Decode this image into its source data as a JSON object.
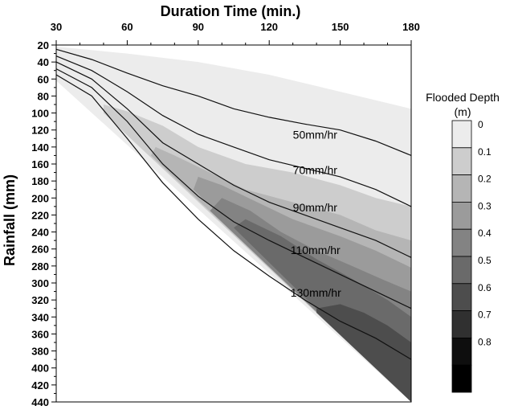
{
  "chart_data": {
    "type": "contour",
    "xlabel": "Duration Time (min.)",
    "ylabel": "Rainfall (mm)",
    "x_ticks": [
      30,
      60,
      90,
      120,
      150,
      180
    ],
    "y_ticks": [
      20,
      40,
      60,
      80,
      100,
      120,
      140,
      160,
      180,
      200,
      220,
      240,
      260,
      280,
      300,
      320,
      340,
      360,
      380,
      400,
      420,
      440
    ],
    "xlim": [
      30,
      180
    ],
    "ylim": [
      440,
      20
    ],
    "x_axis_position": "top",
    "y_axis_inverted": true,
    "legend": {
      "title_line1": "Flooded Depth",
      "title_line2": "(m)",
      "levels": [
        "0",
        "0.1",
        "0.2",
        "0.3",
        "0.4",
        "0.5",
        "0.6",
        "0.7",
        "0.8"
      ],
      "colors": [
        "#ececec",
        "#cdcdcd",
        "#b5b5b5",
        "#9b9b9b",
        "#838383",
        "#6a6a6a",
        "#4d4d4d",
        "#303030",
        "#0e0e0e",
        "#000000"
      ]
    },
    "intensity_lines": [
      {
        "label": "50mm/hr",
        "label_at": [
          130,
          130
        ],
        "points": [
          [
            30,
            25
          ],
          [
            45,
            37
          ],
          [
            60,
            53
          ],
          [
            75,
            68
          ],
          [
            90,
            80
          ],
          [
            105,
            95
          ],
          [
            120,
            105
          ],
          [
            135,
            113
          ],
          [
            150,
            120
          ],
          [
            165,
            133
          ],
          [
            180,
            150
          ]
        ]
      },
      {
        "label": "70mm/hr",
        "label_at": [
          130,
          172
        ],
        "points": [
          [
            30,
            33
          ],
          [
            45,
            50
          ],
          [
            60,
            75
          ],
          [
            75,
            103
          ],
          [
            90,
            125
          ],
          [
            105,
            140
          ],
          [
            120,
            155
          ],
          [
            135,
            165
          ],
          [
            150,
            175
          ],
          [
            165,
            190
          ],
          [
            180,
            210
          ]
        ]
      },
      {
        "label": "90mm/hr",
        "label_at": [
          130,
          216
        ],
        "points": [
          [
            30,
            40
          ],
          [
            45,
            60
          ],
          [
            60,
            95
          ],
          [
            75,
            135
          ],
          [
            90,
            160
          ],
          [
            105,
            185
          ],
          [
            120,
            205
          ],
          [
            135,
            220
          ],
          [
            150,
            235
          ],
          [
            165,
            250
          ],
          [
            180,
            270
          ]
        ]
      },
      {
        "label": "110mm/hr",
        "label_at": [
          129,
          266
        ],
        "points": [
          [
            30,
            48
          ],
          [
            45,
            70
          ],
          [
            60,
            110
          ],
          [
            75,
            160
          ],
          [
            90,
            198
          ],
          [
            105,
            228
          ],
          [
            120,
            250
          ],
          [
            135,
            270
          ],
          [
            150,
            290
          ],
          [
            165,
            310
          ],
          [
            180,
            330
          ]
        ]
      },
      {
        "label": "130mm/hr",
        "label_at": [
          129,
          316
        ],
        "points": [
          [
            30,
            55
          ],
          [
            45,
            80
          ],
          [
            60,
            130
          ],
          [
            75,
            182
          ],
          [
            90,
            225
          ],
          [
            105,
            262
          ],
          [
            120,
            292
          ],
          [
            135,
            320
          ],
          [
            150,
            345
          ],
          [
            165,
            365
          ],
          [
            180,
            390
          ]
        ]
      }
    ],
    "depth_regions": [
      {
        "value": 0.05,
        "polygon": [
          [
            30,
            22
          ],
          [
            60,
            30
          ],
          [
            90,
            40
          ],
          [
            120,
            55
          ],
          [
            150,
            75
          ],
          [
            180,
            95
          ],
          [
            180,
            440
          ],
          [
            30,
            62
          ]
        ]
      },
      {
        "value": 0.15,
        "polygon": [
          [
            50,
            90
          ],
          [
            60,
            98
          ],
          [
            75,
            115
          ],
          [
            90,
            140
          ],
          [
            110,
            160
          ],
          [
            130,
            170
          ],
          [
            150,
            185
          ],
          [
            165,
            200
          ],
          [
            180,
            210
          ],
          [
            180,
            440
          ],
          [
            50,
            100
          ]
        ]
      },
      {
        "value": 0.25,
        "polygon": [
          [
            72,
            140
          ],
          [
            80,
            150
          ],
          [
            95,
            170
          ],
          [
            110,
            190
          ],
          [
            130,
            205
          ],
          [
            150,
            220
          ],
          [
            165,
            238
          ],
          [
            180,
            250
          ],
          [
            180,
            440
          ],
          [
            70,
            150
          ]
        ]
      },
      {
        "value": 0.35,
        "polygon": [
          [
            90,
            175
          ],
          [
            100,
            185
          ],
          [
            115,
            205
          ],
          [
            130,
            225
          ],
          [
            150,
            245
          ],
          [
            165,
            262
          ],
          [
            180,
            282
          ],
          [
            180,
            440
          ],
          [
            88,
            190
          ]
        ]
      },
      {
        "value": 0.45,
        "polygon": [
          [
            100,
            200
          ],
          [
            112,
            215
          ],
          [
            125,
            240
          ],
          [
            140,
            262
          ],
          [
            155,
            280
          ],
          [
            168,
            296
          ],
          [
            180,
            310
          ],
          [
            180,
            440
          ],
          [
            95,
            215
          ]
        ]
      },
      {
        "value": 0.55,
        "polygon": [
          [
            110,
            225
          ],
          [
            125,
            245
          ],
          [
            140,
            272
          ],
          [
            155,
            295
          ],
          [
            170,
            320
          ],
          [
            180,
            340
          ],
          [
            180,
            440
          ],
          [
            105,
            235
          ]
        ]
      },
      {
        "value": 0.65,
        "polygon": [
          [
            140,
            330
          ],
          [
            150,
            325
          ],
          [
            160,
            335
          ],
          [
            170,
            350
          ],
          [
            180,
            370
          ],
          [
            180,
            440
          ],
          [
            140,
            335
          ]
        ]
      }
    ]
  }
}
